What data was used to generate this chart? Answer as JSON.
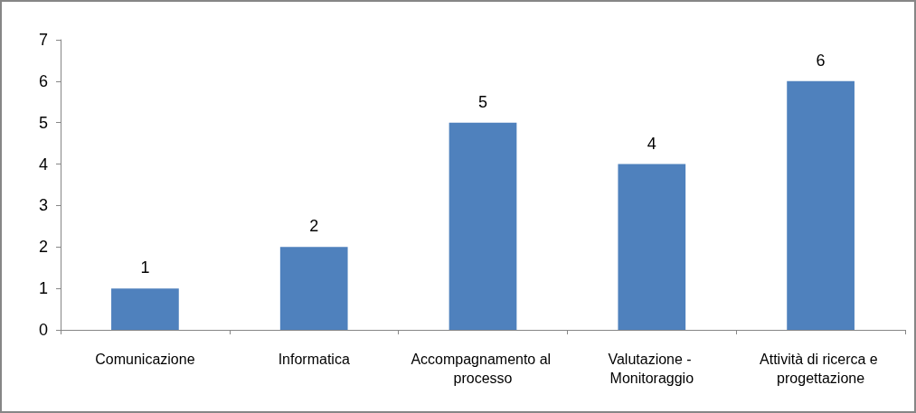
{
  "chart_data": {
    "type": "bar",
    "categories": [
      "Comunicazione",
      "Informatica",
      "Accompagnamento al processo",
      "Valutazione - Monitoraggio",
      "Attività di ricerca e progettazione"
    ],
    "values": [
      1,
      2,
      5,
      4,
      6
    ],
    "color": "#4f81bd",
    "ylim": [
      0,
      7
    ],
    "yticks": [
      0,
      1,
      2,
      3,
      4,
      5,
      6,
      7
    ],
    "grid": false,
    "data_labels": true
  }
}
